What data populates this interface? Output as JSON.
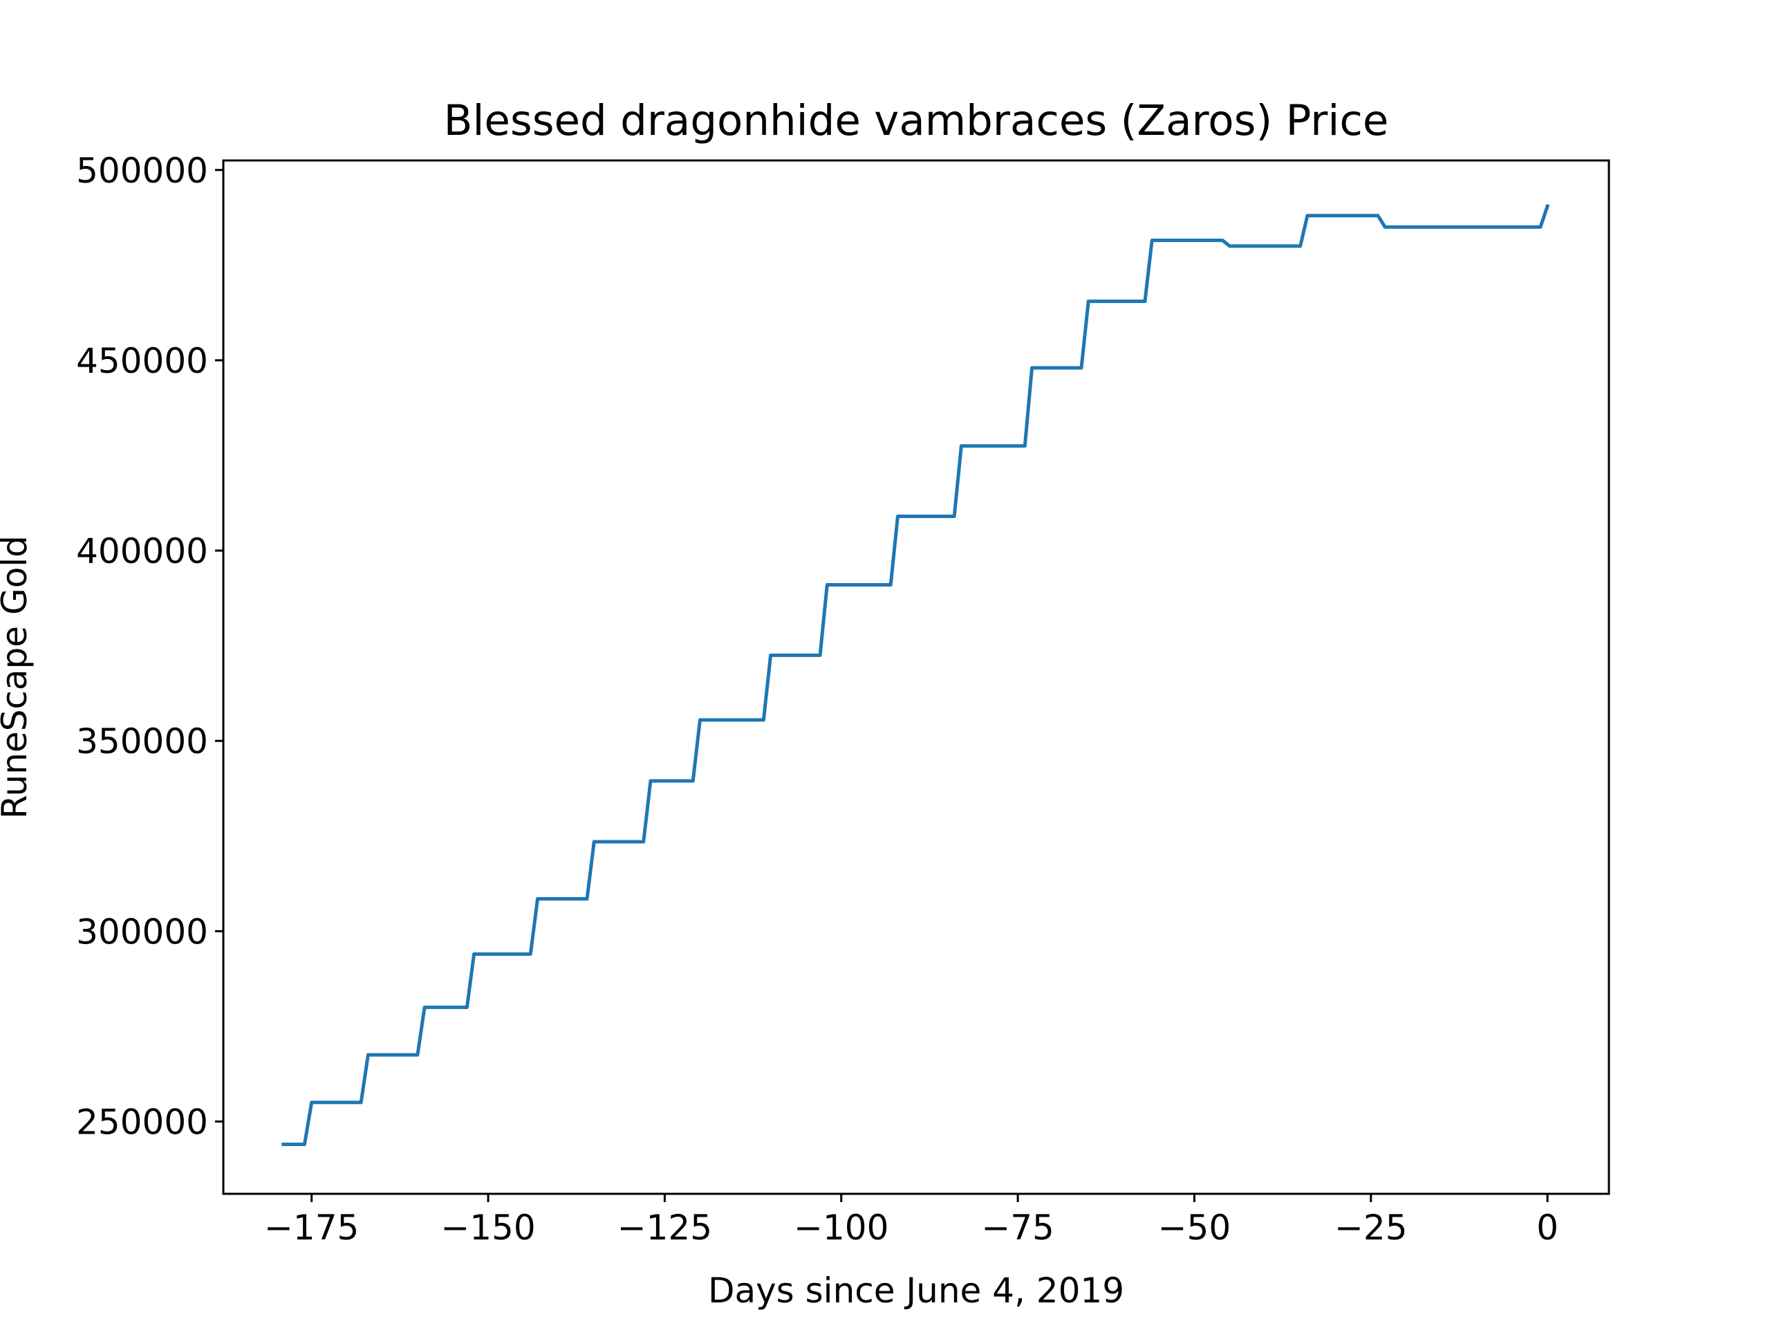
{
  "chart_data": {
    "type": "line",
    "title": "Blessed dragonhide vambraces (Zaros) Price",
    "xlabel": "Days since June 4, 2019",
    "ylabel": "RuneScape Gold",
    "xlim": [
      -187.5,
      8.7
    ],
    "ylim": [
      231000,
      502500
    ],
    "x_ticks": [
      -175,
      -150,
      -125,
      -100,
      -75,
      -50,
      -25,
      0
    ],
    "x_tick_labels": [
      "−175",
      "−150",
      "−125",
      "−100",
      "−75",
      "−50",
      "−25",
      "0"
    ],
    "y_ticks": [
      250000,
      300000,
      350000,
      400000,
      450000,
      500000
    ],
    "y_tick_labels": [
      "250000",
      "300000",
      "350000",
      "400000",
      "450000",
      "500000"
    ],
    "grid": false,
    "colors": {
      "line": "#1f77b4"
    },
    "series": [
      {
        "x": [
          -179,
          -176,
          -175,
          -168,
          -167,
          -160,
          -159,
          -153,
          -152,
          -144,
          -143,
          -136,
          -135,
          -128,
          -127,
          -121,
          -120,
          -111,
          -110,
          -103,
          -102,
          -93,
          -92,
          -84,
          -83,
          -74,
          -73,
          -66,
          -65,
          -57,
          -56,
          -46,
          -45,
          -35,
          -34,
          -24,
          -23,
          -1,
          0
        ],
        "y": [
          244000,
          244000,
          255000,
          255000,
          267500,
          267500,
          280000,
          280000,
          294000,
          294000,
          308500,
          308500,
          323500,
          323500,
          339500,
          339500,
          355500,
          355500,
          372500,
          372500,
          391000,
          391000,
          409000,
          409000,
          427500,
          427500,
          448000,
          448000,
          465500,
          465500,
          481500,
          481500,
          480000,
          480000,
          488000,
          488000,
          485000,
          485000,
          490500
        ]
      }
    ]
  }
}
